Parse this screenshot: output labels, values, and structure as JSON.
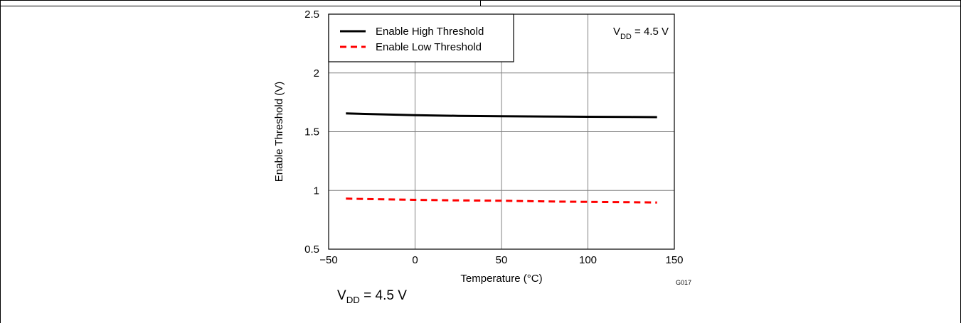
{
  "chart_data": {
    "type": "line",
    "xlabel": "Temperature (°C)",
    "ylabel": "Enable Threshold (V)",
    "xlim": [
      -50,
      150
    ],
    "ylim": [
      0.5,
      2.5
    ],
    "x_ticks": [
      "−50",
      "0",
      "50",
      "100",
      "150"
    ],
    "y_ticks": [
      "0.5",
      "1",
      "1.5",
      "2",
      "2.5"
    ],
    "grid": true,
    "legend_position": "top-left",
    "series": [
      {
        "name": "Enable High Threshold",
        "color": "#000000",
        "style": "solid",
        "x": [
          -40,
          0,
          25,
          50,
          85,
          100,
          125,
          140
        ],
        "y": [
          1.655,
          1.64,
          1.635,
          1.632,
          1.628,
          1.627,
          1.625,
          1.624
        ]
      },
      {
        "name": "Enable Low Threshold",
        "color": "#ff0000",
        "style": "dashed",
        "x": [
          -40,
          0,
          25,
          50,
          85,
          100,
          125,
          140
        ],
        "y": [
          0.93,
          0.92,
          0.915,
          0.912,
          0.905,
          0.903,
          0.9,
          0.897
        ]
      }
    ],
    "annotation": {
      "main": "V",
      "sub": "DD",
      "rest": " = 4.5 V"
    },
    "code": "G017"
  },
  "caption": {
    "main": "V",
    "sub": "DD",
    "rest": " = 4.5 V"
  }
}
